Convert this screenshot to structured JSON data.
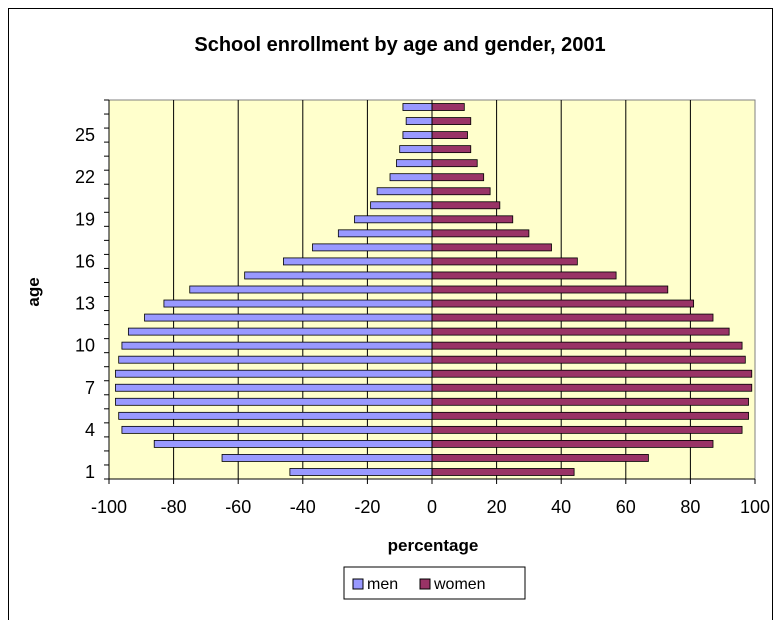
{
  "chart_data": {
    "type": "bar",
    "orientation": "horizontal",
    "title": "School enrollment by age and gender, 2001",
    "xlabel": "percentage",
    "ylabel": "age",
    "xlim": [
      -100,
      100
    ],
    "xticks": [
      "-100",
      "-80",
      "-60",
      "-40",
      "-20",
      "0",
      "20",
      "40",
      "60",
      "80",
      "100"
    ],
    "yticks": [
      "1",
      "4",
      "7",
      "10",
      "13",
      "16",
      "19",
      "22",
      "25"
    ],
    "categories": [
      1,
      2,
      3,
      4,
      5,
      6,
      7,
      8,
      9,
      10,
      11,
      12,
      13,
      14,
      15,
      16,
      17,
      18,
      19,
      20,
      21,
      22,
      23,
      24,
      25,
      26,
      27
    ],
    "series": [
      {
        "name": "men",
        "color": "#9999ff",
        "values": [
          -44,
          -65,
          -86,
          -96,
          -97,
          -98,
          -98,
          -98,
          -97,
          -96,
          -94,
          -89,
          -83,
          -75,
          -58,
          -46,
          -37,
          -29,
          -24,
          -19,
          -17,
          -13,
          -11,
          -10,
          -9,
          -8,
          -9
        ]
      },
      {
        "name": "women",
        "color": "#993366",
        "values": [
          44,
          67,
          87,
          96,
          98,
          98,
          99,
          99,
          97,
          96,
          92,
          87,
          81,
          73,
          57,
          45,
          37,
          30,
          25,
          21,
          18,
          16,
          14,
          12,
          11,
          12,
          10
        ]
      }
    ],
    "grid": true,
    "plot_background": "#ffffcc",
    "legend_position": "bottom"
  },
  "legend": {
    "men": "men",
    "women": "women"
  }
}
